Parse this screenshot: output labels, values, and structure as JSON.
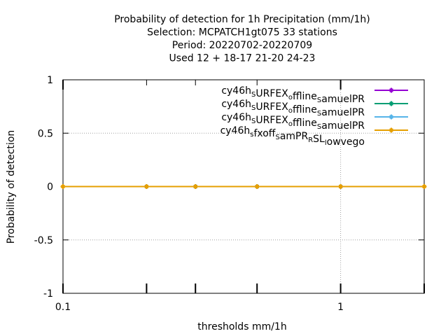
{
  "chart_data": {
    "type": "line",
    "title_lines": [
      "Probability of detection  for 1h Precipitation (mm/1h)",
      "Selection: MCPATCH1gt075      33 stations",
      "Period: 20220702-20220709",
      "Used  12 + 18-17 21-20 24-23"
    ],
    "xlabel": "thresholds mm/1h",
    "ylabel": "Probability of detection",
    "x_scale": "log",
    "xlim": [
      0.1,
      2
    ],
    "ylim": [
      -1,
      1
    ],
    "x_ticks": [
      {
        "value": 0.1,
        "label": "0.1"
      },
      {
        "value": 1,
        "label": "1"
      }
    ],
    "x_minor_ticks": [
      0.2,
      0.3,
      0.5,
      2
    ],
    "y_ticks": [
      {
        "value": -1,
        "label": "-1"
      },
      {
        "value": -0.5,
        "label": "-0.5"
      },
      {
        "value": 0,
        "label": "0"
      },
      {
        "value": 0.5,
        "label": "0.5"
      },
      {
        "value": 1,
        "label": "1"
      }
    ],
    "grid": true,
    "legend_position": "top-right",
    "x": [
      0.1,
      0.2,
      0.3,
      0.5,
      1,
      2
    ],
    "series": [
      {
        "name": "cy46h_SURFEX_offline_samuelPR",
        "legend_parts": [
          [
            "cy46h",
            0
          ],
          [
            "S",
            1
          ],
          [
            "URFEX",
            0
          ],
          [
            "o",
            1
          ],
          [
            "ffline",
            0
          ],
          [
            "S",
            1
          ],
          [
            "amuelPR",
            0
          ]
        ],
        "color": "#9400d3",
        "values": [
          0,
          0,
          0,
          0,
          0,
          0
        ]
      },
      {
        "name": "cy46h_SURFEX_offline_samuelPR",
        "legend_parts": [
          [
            "cy46h",
            0
          ],
          [
            "S",
            1
          ],
          [
            "URFEX",
            0
          ],
          [
            "o",
            1
          ],
          [
            "ffline",
            0
          ],
          [
            "S",
            1
          ],
          [
            "amuelPR",
            0
          ]
        ],
        "color": "#009e73",
        "values": [
          0,
          0,
          0,
          0,
          0,
          0
        ]
      },
      {
        "name": "cy46h_SURFEX_offline_samuelPR",
        "legend_parts": [
          [
            "cy46h",
            0
          ],
          [
            "S",
            1
          ],
          [
            "URFEX",
            0
          ],
          [
            "o",
            1
          ],
          [
            "ffline",
            0
          ],
          [
            "S",
            1
          ],
          [
            "amuelPR",
            0
          ]
        ],
        "color": "#56b4e9",
        "values": [
          0,
          0,
          0,
          0,
          0,
          0
        ]
      },
      {
        "name": "cy46h_sfxoff_samPR_RSL_lowvego",
        "legend_parts": [
          [
            "cy46h",
            0
          ],
          [
            "s",
            1
          ],
          [
            "fxoff",
            0
          ],
          [
            "S",
            1
          ],
          [
            "amPR",
            0
          ],
          [
            "R",
            1
          ],
          [
            "SL",
            0
          ],
          [
            "l",
            1
          ],
          [
            "owvego",
            0
          ]
        ],
        "color": "#e69f00",
        "values": [
          0,
          0,
          0,
          0,
          0,
          0
        ]
      }
    ]
  }
}
